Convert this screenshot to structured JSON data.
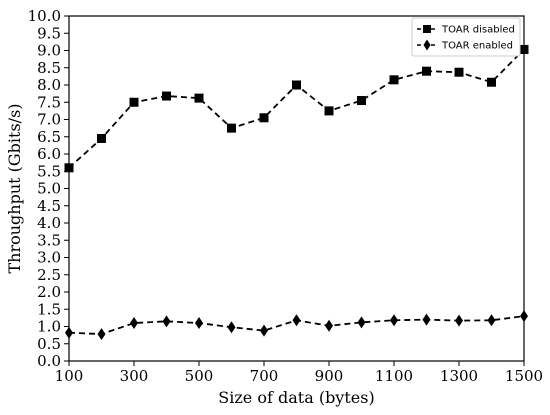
{
  "chart_data": {
    "type": "line",
    "xlabel": "Size of data (bytes)",
    "ylabel": "Throughput (Gbits/s)",
    "xlim": [
      100,
      1500
    ],
    "ylim": [
      0,
      10
    ],
    "x_ticks": [
      100,
      300,
      500,
      700,
      900,
      1100,
      1300,
      1500
    ],
    "y_ticks": [
      0.0,
      0.5,
      1.0,
      1.5,
      2.0,
      2.5,
      3.0,
      3.5,
      4.0,
      4.5,
      5.0,
      5.5,
      6.0,
      6.5,
      7.0,
      7.5,
      8.0,
      8.5,
      9.0,
      9.5,
      10.0
    ],
    "x_tick_labels": [
      "100",
      "300",
      "500",
      "700",
      "900",
      "1100",
      "1300",
      "1500"
    ],
    "y_tick_labels": [
      "0.0",
      "0.5",
      "1.0",
      "1.5",
      "2.0",
      "2.5",
      "3.0",
      "3.5",
      "4.0",
      "4.5",
      "5.0",
      "5.5",
      "6.0",
      "6.5",
      "7.0",
      "7.5",
      "8.0",
      "8.5",
      "9.0",
      "9.5",
      "10.0"
    ],
    "x": [
      100,
      200,
      300,
      400,
      500,
      600,
      700,
      800,
      900,
      1000,
      1100,
      1200,
      1300,
      1400,
      1500
    ],
    "series": [
      {
        "name": "TOAR disabled",
        "marker": "square",
        "line_style": "dashed",
        "color": "#000000",
        "values": [
          5.6,
          6.45,
          7.5,
          7.68,
          7.62,
          6.75,
          7.05,
          8.0,
          7.25,
          7.55,
          8.15,
          8.4,
          8.37,
          8.08,
          9.03
        ]
      },
      {
        "name": "TOAR enabled",
        "marker": "diamond",
        "line_style": "dashed",
        "color": "#000000",
        "values": [
          0.82,
          0.78,
          1.1,
          1.15,
          1.1,
          0.98,
          0.88,
          1.18,
          1.02,
          1.12,
          1.18,
          1.2,
          1.17,
          1.18,
          1.3
        ]
      }
    ],
    "grid": false,
    "legend": "top-right"
  }
}
